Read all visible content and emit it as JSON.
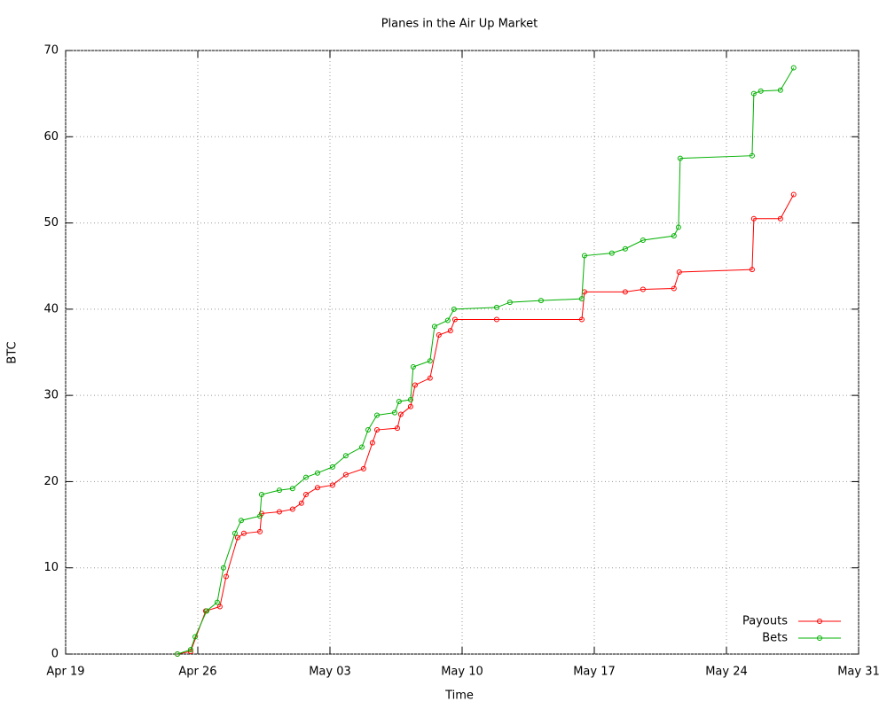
{
  "chart_data": {
    "type": "line",
    "title": "Planes in the Air Up Market",
    "x_label": "Time",
    "y_label": "BTC",
    "xlim": [
      0,
      42
    ],
    "xticks": [
      {
        "value": 0,
        "label": "Apr 19"
      },
      {
        "value": 7,
        "label": "Apr 26"
      },
      {
        "value": 14,
        "label": "May 03"
      },
      {
        "value": 21,
        "label": "May 10"
      },
      {
        "value": 28,
        "label": "May 17"
      },
      {
        "value": 35,
        "label": "May 24"
      },
      {
        "value": 42,
        "label": "May 31"
      }
    ],
    "ylim": [
      0,
      70
    ],
    "yticks": [
      0,
      10,
      20,
      30,
      40,
      50,
      60,
      70
    ],
    "grid": true,
    "legend": "lower right",
    "series": [
      {
        "name": "Payouts",
        "color": "#ff0000",
        "x": [
          5.92,
          6.62,
          7.42,
          8.17,
          8.5,
          9.11,
          9.44,
          10.29,
          10.38,
          11.32,
          12.02,
          12.49,
          12.73,
          13.34,
          14.14,
          14.84,
          15.78,
          16.25,
          16.49,
          17.57,
          17.75,
          18.27,
          18.51,
          19.3,
          19.77,
          20.38,
          20.62,
          22.83,
          27.34,
          27.48,
          29.64,
          30.58,
          32.22,
          32.5,
          36.36,
          36.45,
          37.86,
          38.56
        ],
        "values": [
          0,
          0.3,
          5,
          5.5,
          9,
          13.5,
          14,
          14.2,
          16.3,
          16.5,
          16.8,
          17.5,
          18.5,
          19.3,
          19.6,
          20.8,
          21.5,
          24.5,
          26,
          26.2,
          27.8,
          28.7,
          31.2,
          32,
          37,
          37.5,
          38.8,
          38.8,
          38.8,
          42,
          42,
          42.3,
          42.4,
          44.3,
          44.6,
          50.5,
          50.5,
          53.3
        ]
      },
      {
        "name": "Bets",
        "color": "#00b000",
        "x": [
          5.92,
          6.62,
          6.86,
          7.47,
          8.03,
          8.36,
          8.97,
          9.3,
          10.29,
          10.38,
          11.32,
          12.02,
          12.73,
          13.34,
          14.14,
          14.84,
          15.69,
          16.02,
          16.49,
          17.43,
          17.66,
          18.27,
          18.41,
          19.3,
          19.54,
          20.24,
          20.57,
          22.83,
          23.53,
          25.18,
          27.34,
          27.48,
          28.93,
          29.64,
          30.58,
          32.22,
          32.46,
          32.55,
          36.36,
          36.45,
          36.82,
          37.86,
          38.56
        ],
        "values": [
          0,
          0.5,
          2,
          5,
          6,
          10,
          14,
          15.5,
          16,
          18.5,
          19,
          19.2,
          20.5,
          21,
          21.7,
          23,
          24,
          26,
          27.7,
          28,
          29.3,
          29.5,
          33.3,
          34,
          38,
          38.7,
          40,
          40.2,
          40.8,
          41,
          41.2,
          46.2,
          46.5,
          47,
          48,
          48.5,
          49.5,
          57.5,
          57.8,
          65,
          65.3,
          65.4,
          68
        ]
      }
    ]
  }
}
